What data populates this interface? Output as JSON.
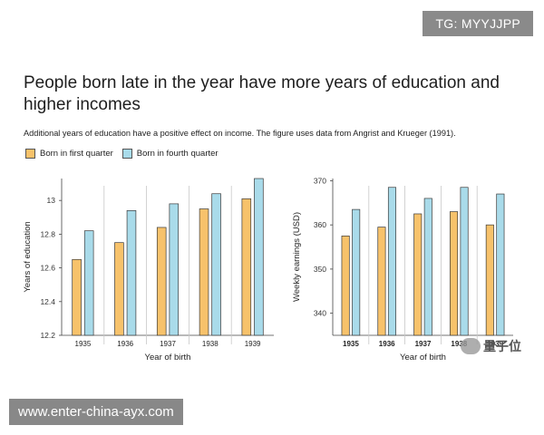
{
  "top_badge": "TG: MYYJJPP",
  "title": "People born late in the year have more years of education and higher incomes",
  "subtitle": "Additional years of education have a positive effect on income. The figure uses data from Angrist and Krueger (1991).",
  "legend": {
    "first": "Born in first quarter",
    "fourth": "Born in fourth quarter"
  },
  "colors": {
    "first": "#f7c26b",
    "fourth": "#a9dbea",
    "bar_stroke": "#3a3a3a"
  },
  "chart_data": [
    {
      "type": "bar",
      "categories": [
        "1935",
        "1936",
        "1937",
        "1938",
        "1939"
      ],
      "series": [
        {
          "name": "Born in first quarter",
          "values": [
            12.65,
            12.75,
            12.84,
            12.95,
            13.01
          ]
        },
        {
          "name": "Born in fourth quarter",
          "values": [
            12.82,
            12.94,
            12.98,
            13.04,
            13.13
          ]
        }
      ],
      "xlabel": "Year of birth",
      "ylabel": "Years of education",
      "ylim": [
        12.2,
        13.13
      ],
      "yticks": [
        "12.2",
        "12.4",
        "12.6",
        "12.8",
        "13"
      ],
      "ytick_values": [
        12.2,
        12.4,
        12.6,
        12.8,
        13.0
      ],
      "grid": "vertical separators"
    },
    {
      "type": "bar",
      "categories": [
        "1935",
        "1936",
        "1937",
        "1938",
        "1939"
      ],
      "series": [
        {
          "name": "Born in first quarter",
          "values": [
            357.5,
            359.5,
            362.5,
            363,
            360
          ]
        },
        {
          "name": "Born in fourth quarter",
          "values": [
            363.5,
            368.5,
            366,
            368.5,
            367
          ]
        }
      ],
      "xlabel": "Year of birth",
      "ylabel": "Weekly earnings (USD)",
      "ylim": [
        335,
        370.5
      ],
      "yticks": [
        "340",
        "350",
        "360",
        "370"
      ],
      "ytick_values": [
        340,
        350,
        360,
        370
      ],
      "grid": "vertical separators"
    }
  ],
  "bottom_badge": "www.enter-china-ayx.com",
  "watermark": "量子位"
}
